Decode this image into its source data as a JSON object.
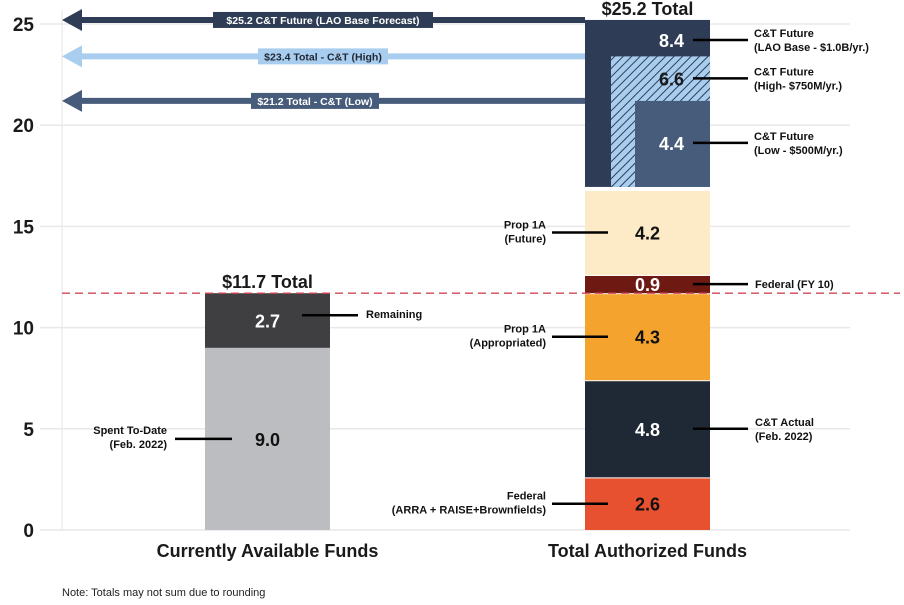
{
  "chart_data": {
    "type": "bar",
    "stacked": true,
    "ylim": [
      0,
      25
    ],
    "yticks": [
      0,
      5,
      10,
      15,
      20,
      25
    ],
    "grid": true,
    "categories": [
      "Currently Available Funds",
      "Total Authorized Funds"
    ],
    "note": "Note: Totals may not sum due to rounding",
    "reference_line": {
      "value": 11.7,
      "style": "dashed",
      "color": "#d0465a"
    },
    "bars": [
      {
        "category": "Currently Available Funds",
        "total_label": "$11.7 Total",
        "segments": [
          {
            "name": "Spent To-Date",
            "label_lines": [
              "Spent To-Date",
              "(Feb. 2022)"
            ],
            "value": 9.0,
            "value_label": "9.0",
            "color": "#bcbdc0",
            "text_color": "#111111",
            "label_side": "left"
          },
          {
            "name": "Remaining",
            "label_lines": [
              "Remaining"
            ],
            "value": 2.7,
            "value_label": "2.7",
            "color": "#3f3f41",
            "text_color": "#ffffff",
            "label_side": "right"
          }
        ]
      },
      {
        "category": "Total Authorized Funds",
        "total_label": "$25.2 Total",
        "segments": [
          {
            "name": "Federal (ARRA + RAISE+Brownfields)",
            "label_lines": [
              "Federal",
              "(ARRA + RAISE+Brownfields)"
            ],
            "value": 2.6,
            "value_label": "2.6",
            "color": "#e8512f",
            "text_color": "#111111",
            "label_side": "left"
          },
          {
            "name": "C&T Actual",
            "label_lines": [
              "C&T Actual",
              "(Feb. 2022)"
            ],
            "value": 4.8,
            "value_label": "4.8",
            "color": "#1f2835",
            "text_color": "#ffffff",
            "label_side": "right"
          },
          {
            "name": "Prop 1A (Appropriated)",
            "label_lines": [
              "Prop 1A",
              "(Appropriated)"
            ],
            "value": 4.3,
            "value_label": "4.3",
            "color": "#f4a32e",
            "text_color": "#111111",
            "label_side": "left"
          },
          {
            "name": "Federal (FY 10)",
            "label_lines": [
              "Federal (FY 10)"
            ],
            "value": 0.9,
            "value_label": "0.9",
            "color": "#6e1a12",
            "text_color": "#ffffff",
            "label_side": "right"
          },
          {
            "name": "Prop 1A (Future)",
            "label_lines": [
              "Prop 1A",
              "(Future)"
            ],
            "value": 4.2,
            "value_label": "4.2",
            "color": "#fdebc8",
            "text_color": "#111111",
            "label_side": "left"
          }
        ],
        "future_scenarios": [
          {
            "name": "C&T Future (LAO Base)",
            "label_lines": [
              "C&T Future",
              "(LAO Base - $1.0B/yr.)"
            ],
            "value": 8.4,
            "value_label": "8.4",
            "color": "#2e3d55",
            "pattern": "solid"
          },
          {
            "name": "C&T Future (High)",
            "label_lines": [
              "C&T Future",
              "(High- $750M/yr.)"
            ],
            "value": 6.6,
            "value_label": "6.6",
            "color": "#a9cdee",
            "pattern": "hatched"
          },
          {
            "name": "C&T Future (Low)",
            "label_lines": [
              "C&T Future",
              "(Low - $500M/yr.)"
            ],
            "value": 4.4,
            "value_label": "4.4",
            "color": "#475c7b",
            "pattern": "solid"
          }
        ]
      }
    ],
    "arrows": [
      {
        "label": "$25.2 C&T Future (LAO Base Forecast)",
        "value": 25.2,
        "color": "#2e3d55",
        "text_color": "#ffffff"
      },
      {
        "label": "$23.4 Total - C&T (High)",
        "value": 23.4,
        "color": "#a9cdee",
        "text_color": "#1f2835"
      },
      {
        "label": "$21.2 Total - C&T (Low)",
        "value": 21.2,
        "color": "#475c7b",
        "text_color": "#ffffff"
      }
    ]
  }
}
